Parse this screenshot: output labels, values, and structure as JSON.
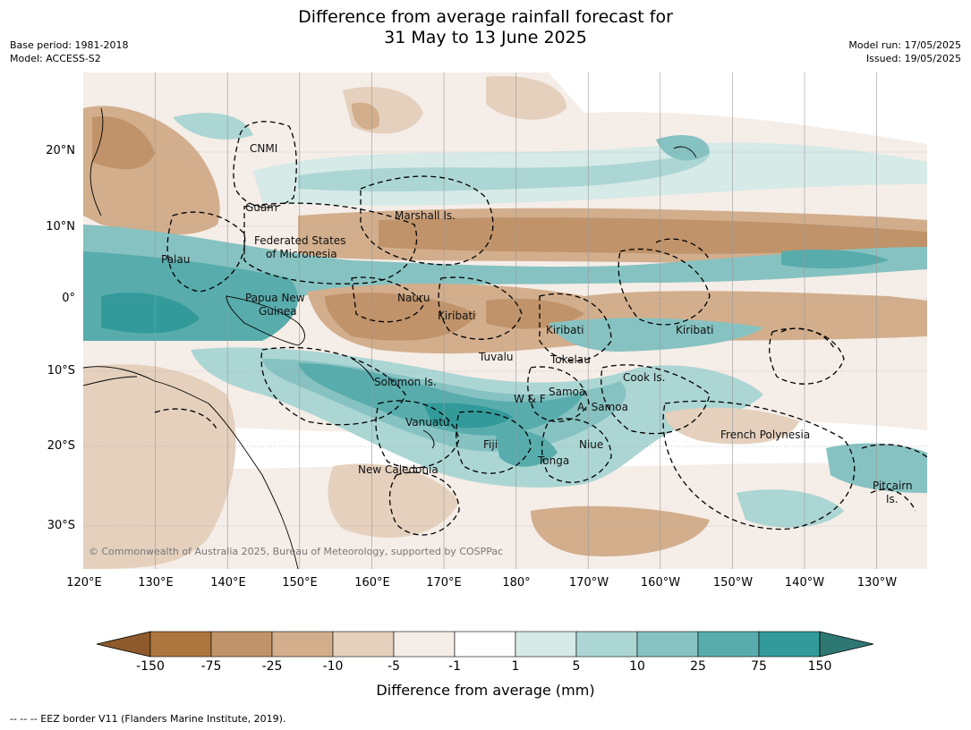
{
  "title_line1": "Difference from average rainfall forecast for",
  "title_line2": "31 May to 13 June 2025",
  "base_period": "Base period: 1981-2018",
  "model": "Model: ACCESS-S2",
  "model_run": "Model run: 17/05/2025",
  "issued": "Issued: 19/05/2025",
  "lat_labels": [
    "20°N",
    "10°N",
    "0°",
    "10°S",
    "20°S",
    "30°S"
  ],
  "lon_labels": [
    "120°E",
    "130°E",
    "140°E",
    "150°E",
    "160°E",
    "170°E",
    "180°",
    "170°W",
    "160°W",
    "150°W",
    "140°W",
    "130°W"
  ],
  "places": [
    "CNMI",
    "Guam",
    "Marshall Is.",
    "Federated States",
    "of Micronesia",
    "Palau",
    "Nauru",
    "Papua New",
    "Guinea",
    "Kiribati",
    "Kiribati",
    "Kiribati",
    "Tuvalu",
    "Tokelau",
    "Solomon Is.",
    "Cook Is.",
    "Samoa",
    "W & F",
    "A. Samoa",
    "Vanuatu",
    "Fiji",
    "Niue",
    "French Polynesia",
    "Tonga",
    "New Caledonia",
    "Pitcairn",
    "Is."
  ],
  "copyright": "© Commonwealth of Australia 2025, Bureau of Meteorology, supported by COSPPac",
  "colorbar": {
    "ticks": [
      "-150",
      "-75",
      "-25",
      "-10",
      "-5",
      "-1",
      "1",
      "5",
      "10",
      "25",
      "75",
      "150"
    ],
    "colors": [
      "#8e5a2b",
      "#ad763e",
      "#c0936a",
      "#d2ae8d",
      "#e4d0bd",
      "#f5ede7",
      "#ffffff",
      "#d6eae8",
      "#acd6d4",
      "#86c2c1",
      "#58acac",
      "#339a9a",
      "#2e7874"
    ],
    "title": "Difference from average (mm)"
  },
  "legend_line": "--  --  -- EEZ border V11 (Flanders Marine Institute, 2019).",
  "map_palette": {
    "dry_strong": "#c0936a",
    "dry_mid": "#d2ae8d",
    "dry_light": "#e4d0bd",
    "dry_faint": "#f5ede7",
    "wet_faint": "#d6eae8",
    "wet_light": "#acd6d4",
    "wet_mid": "#86c2c1",
    "wet_strong": "#58acac",
    "wet_max": "#339a9a"
  }
}
